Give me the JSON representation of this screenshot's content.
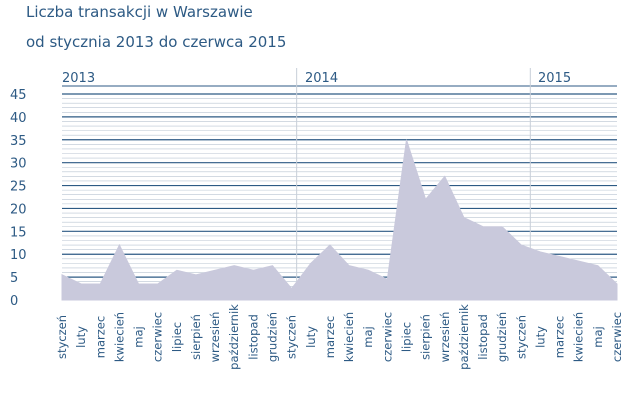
{
  "chart_data": {
    "type": "area",
    "title": "Liczba transakcji w Warszawie",
    "subtitle": "od stycznia 2013 do czerwca 2015",
    "years": [
      "2013",
      "2014",
      "2015"
    ],
    "categories": [
      "styczeń",
      "luty",
      "marzec",
      "kwiecień",
      "maj",
      "czerwiec",
      "lipiec",
      "sierpień",
      "wrzesień",
      "październik",
      "listopad",
      "grudzień",
      "styczeń",
      "luty",
      "marzec",
      "kwiecień",
      "maj",
      "czerwiec",
      "lipiec",
      "sierpień",
      "wrzesień",
      "październik",
      "listopad",
      "grudzień",
      "styczeń",
      "luty",
      "marzec",
      "kwiecień",
      "maj",
      "czerwiec"
    ],
    "values": [
      5.5,
      3.5,
      3.5,
      12,
      3.5,
      3.5,
      6.5,
      5.5,
      6.5,
      7.5,
      6.5,
      7.5,
      2.5,
      8,
      12,
      7.5,
      6.5,
      4.5,
      35,
      22,
      27,
      18,
      16,
      16,
      12,
      10.5,
      9.5,
      8.5,
      7.5,
      3.5
    ],
    "yticks": [
      0,
      5,
      10,
      15,
      20,
      25,
      30,
      35,
      40,
      45
    ],
    "ylim": [
      0,
      45
    ],
    "grid": true,
    "colors": {
      "text": "#2d5a84",
      "area": "#c9c9dc",
      "major_grid": "#2d5a84",
      "minor_grid": "#b9c4d2",
      "year_divider": "#c8cfd8"
    }
  }
}
